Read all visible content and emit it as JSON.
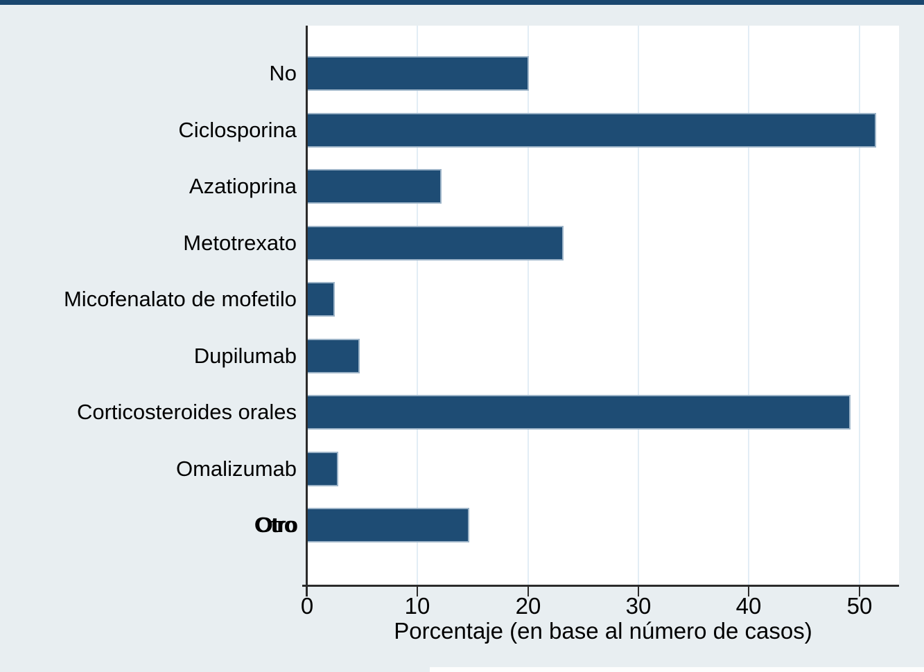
{
  "chart_data": {
    "type": "bar",
    "orientation": "horizontal",
    "title": "",
    "xlabel": "Porcentaje (en base al número de casos)",
    "ylabel": "",
    "categories": [
      "No",
      "Ciclosporina",
      "Azatioprina",
      "Metotrexato",
      "Micofenalato de mofetilo",
      "Dupilumab",
      "Corticosteroides orales",
      "Omalizumab",
      "Otro"
    ],
    "values": [
      20.1,
      51.5,
      12.2,
      23.2,
      2.5,
      4.8,
      49.2,
      2.8,
      14.7
    ],
    "x_ticks": [
      0,
      10,
      20,
      30,
      40,
      50
    ],
    "xlim": [
      0,
      53.6
    ],
    "grid": "vertical-light",
    "legend": "none",
    "overprint_last_label": true,
    "colors": {
      "bar_fill": "#1e4c74",
      "bar_edge": "#9db4c8",
      "figure_background": "#e8eef1",
      "plot_background": "#ffffff",
      "gridline": "#e2edf5",
      "axis_line": "#2b2b2b",
      "text": "#000000",
      "top_border": "#1a476f"
    }
  }
}
